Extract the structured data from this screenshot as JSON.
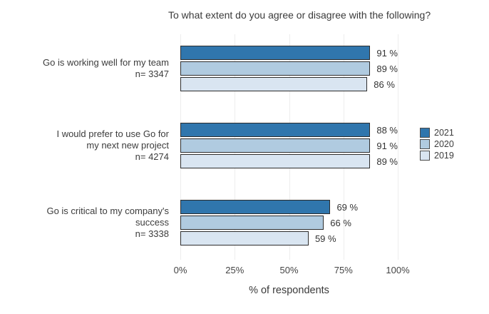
{
  "title": "To what extent do you agree or disagree with the following?",
  "x_axis": {
    "label": "% of respondents",
    "ticks": [
      "0%",
      "25%",
      "50%",
      "75%",
      "100%"
    ],
    "tick_values": [
      0,
      25,
      50,
      75,
      100
    ]
  },
  "legend": {
    "entries": [
      {
        "label": "2021",
        "color": "#3076ad"
      },
      {
        "label": "2020",
        "color": "#b0cbe0"
      },
      {
        "label": "2019",
        "color": "#d9e5f1"
      }
    ]
  },
  "chart_data": {
    "type": "bar",
    "orientation": "horizontal",
    "title": "To what extent do you agree or disagree with the following?",
    "xlabel": "% of respondents",
    "xlim": [
      0,
      100
    ],
    "grid": true,
    "legend_position": "right",
    "categories": [
      "Go is working well for my team n= 3347",
      "I would prefer to use Go for my next new project n= 4274",
      "Go is critical to my company's success n= 3338"
    ],
    "category_lines": [
      [
        "Go is working well for my team",
        "n= 3347"
      ],
      [
        "I would prefer to use Go for",
        "my next new project",
        "n= 4274"
      ],
      [
        "Go is critical to my company's",
        "success",
        "n= 3338"
      ]
    ],
    "series": [
      {
        "name": "2021",
        "color": "#3076ad",
        "values": [
          91,
          88,
          69
        ]
      },
      {
        "name": "2020",
        "color": "#b0cbe0",
        "values": [
          89,
          91,
          66
        ]
      },
      {
        "name": "2019",
        "color": "#d9e5f1",
        "values": [
          86,
          89,
          59
        ]
      }
    ],
    "value_labels": [
      [
        "91 %",
        "88 %",
        "69 %"
      ],
      [
        "89 %",
        "91 %",
        "66 %"
      ],
      [
        "86 %",
        "89 %",
        "59 %"
      ]
    ],
    "value_label_suffix": " %"
  }
}
